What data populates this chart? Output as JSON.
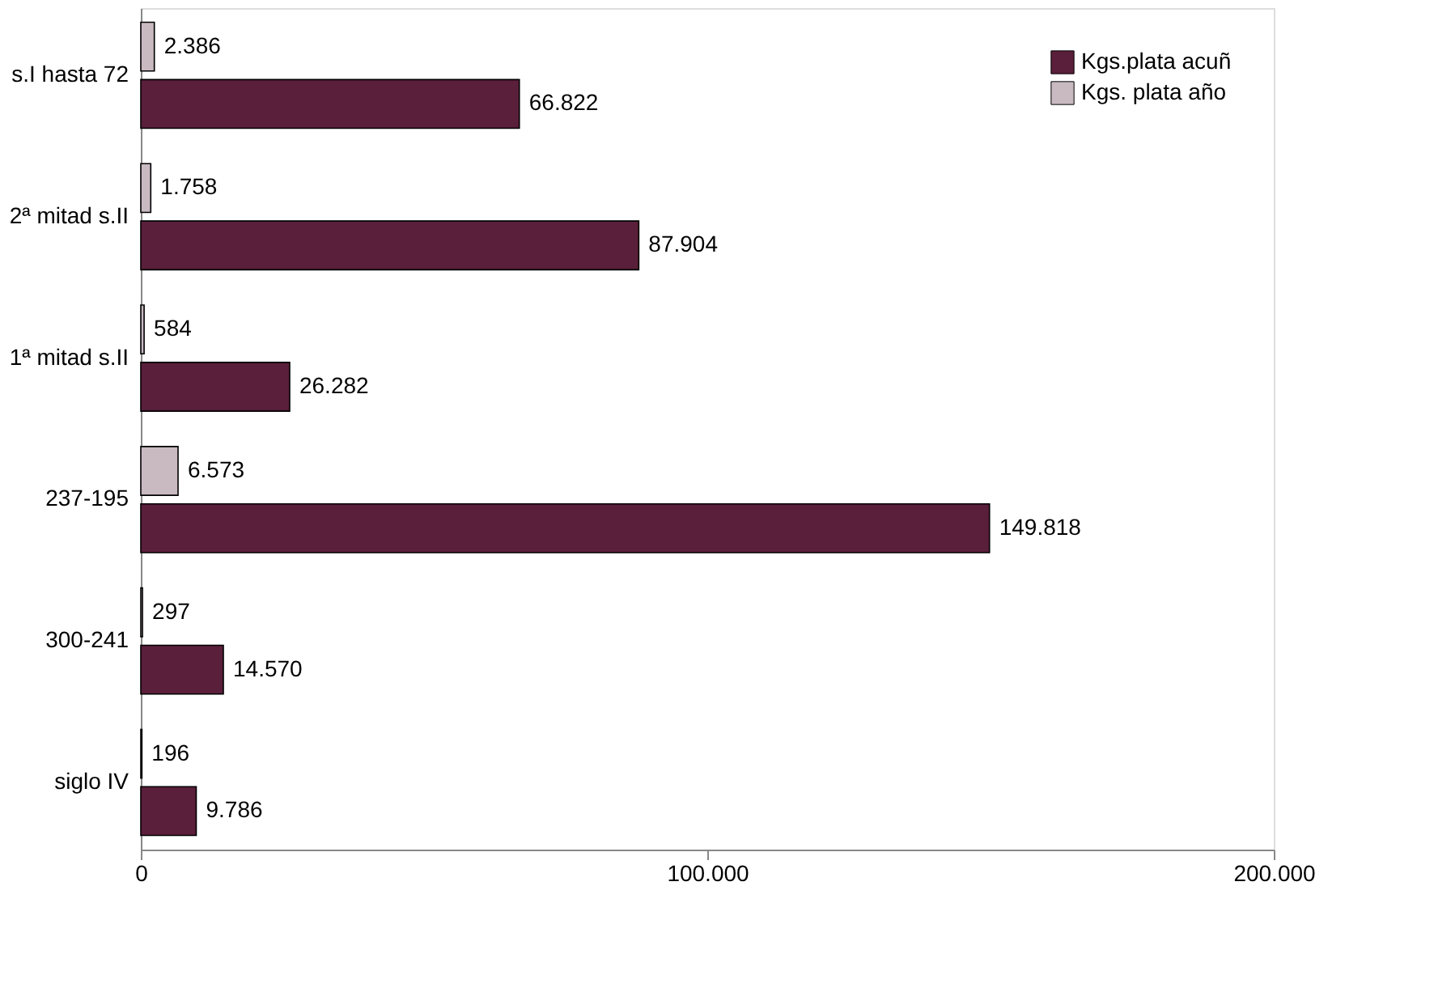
{
  "chart_data": {
    "type": "bar",
    "orientation": "horizontal",
    "categories": [
      "s.I hasta 72",
      "2ª mitad s.II",
      "1ª mitad s.II",
      "237-195",
      "300-241",
      "siglo IV"
    ],
    "series": [
      {
        "name": "Kgs.plata acuñ",
        "color": "#5a1f3a",
        "values": [
          66822,
          87904,
          26282,
          149818,
          14570,
          9786
        ],
        "value_labels": [
          "66.822",
          "87.904",
          "26.282",
          "149.818",
          "14.570",
          "9.786"
        ]
      },
      {
        "name": "Kgs. plata año",
        "color": "#c9b9c1",
        "values": [
          2386,
          1758,
          584,
          6573,
          297,
          196
        ],
        "value_labels": [
          "2.386",
          "1.758",
          "584",
          "6.573",
          "297",
          "196"
        ]
      }
    ],
    "xlim": [
      0,
      200000
    ],
    "xticks": [
      0,
      {
        "value": 100000,
        "label": "100.000"
      },
      {
        "value": 200000,
        "label": "200.000"
      }
    ],
    "legend": "top right",
    "grid": false
  }
}
